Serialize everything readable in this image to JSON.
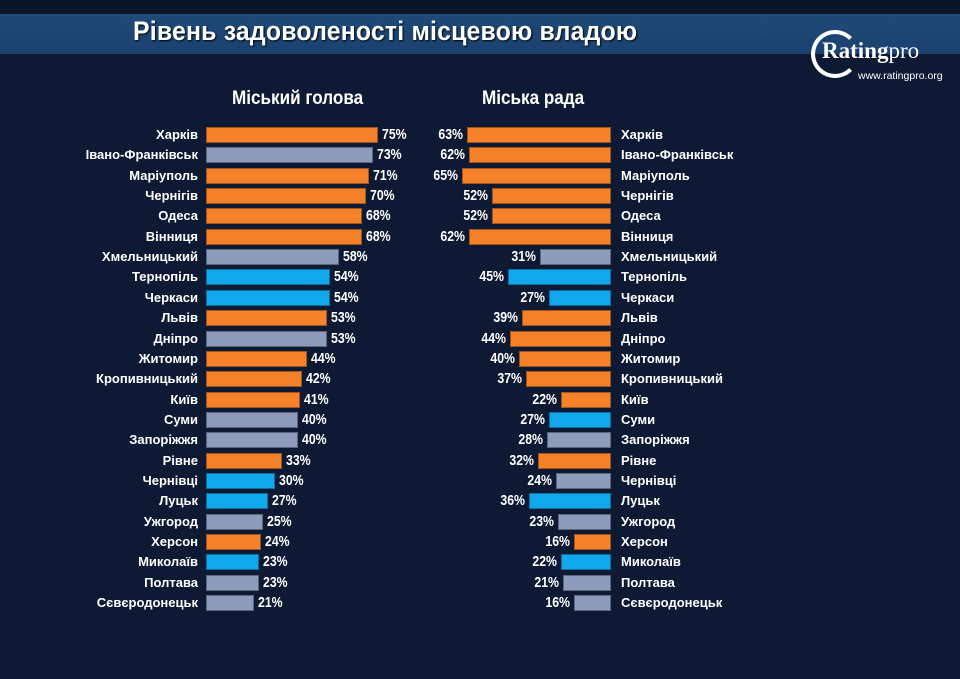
{
  "header": {
    "title": "Рівень задоволеності місцевою владою",
    "logo": {
      "name": "Rating",
      "suffix": "pro",
      "url": "www.ratingpro.org"
    }
  },
  "colors": {
    "orange": "#f5812a",
    "gray": "#8e9cbc",
    "blue": "#11a8ec",
    "background": "#0e1a33",
    "title_band": "#1d4574"
  },
  "chart_data": [
    {
      "type": "bar",
      "orientation": "horizontal",
      "title": "Міський голова",
      "unit": "%",
      "xlim": [
        0,
        100
      ],
      "categories": [
        "Харків",
        "Івано-Франківськ",
        "Маріуполь",
        "Чернігів",
        "Одеса",
        "Вінниця",
        "Хмельницький",
        "Тернопіль",
        "Черкаси",
        "Львів",
        "Дніпро",
        "Житомир",
        "Кропивницький",
        "Київ",
        "Суми",
        "Запоріжжя",
        "Рівне",
        "Чернівці",
        "Луцьк",
        "Ужгород",
        "Херсон",
        "Миколаїв",
        "Полтава",
        "Сєвєродонецьк"
      ],
      "values": [
        75,
        73,
        71,
        70,
        68,
        68,
        58,
        54,
        54,
        53,
        53,
        44,
        42,
        41,
        40,
        40,
        33,
        30,
        27,
        25,
        24,
        23,
        23,
        21
      ],
      "bar_colors": [
        "orange",
        "gray",
        "orange",
        "orange",
        "orange",
        "orange",
        "gray",
        "blue",
        "blue",
        "orange",
        "gray",
        "orange",
        "orange",
        "orange",
        "gray",
        "gray",
        "orange",
        "blue",
        "blue",
        "gray",
        "orange",
        "blue",
        "gray",
        "gray"
      ],
      "labels": [
        "75%",
        "73%",
        "71%",
        "70%",
        "68%",
        "68%",
        "58%",
        "54%",
        "54%",
        "53%",
        "53%",
        "44%",
        "42%",
        "41%",
        "40%",
        "40%",
        "33%",
        "30%",
        "27%",
        "25%",
        "24%",
        "23%",
        "23%",
        "21%"
      ]
    },
    {
      "type": "bar",
      "orientation": "horizontal",
      "title": "Міська рада",
      "unit": "%",
      "xlim": [
        0,
        100
      ],
      "categories": [
        "Харків",
        "Івано-Франківськ",
        "Маріуполь",
        "Чернігів",
        "Одеса",
        "Вінниця",
        "Хмельницький",
        "Тернопіль",
        "Черкаси",
        "Львів",
        "Дніпро",
        "Житомир",
        "Кропивницький",
        "Київ",
        "Суми",
        "Запоріжжя",
        "Рівне",
        "Чернівці",
        "Луцьк",
        "Ужгород",
        "Херсон",
        "Миколаїв",
        "Полтава",
        "Сєвєродонецьк"
      ],
      "values": [
        63,
        62,
        65,
        52,
        52,
        62,
        31,
        45,
        27,
        39,
        44,
        40,
        37,
        22,
        27,
        28,
        32,
        24,
        36,
        23,
        16,
        22,
        21,
        16
      ],
      "bar_colors": [
        "orange",
        "orange",
        "orange",
        "orange",
        "orange",
        "orange",
        "gray",
        "blue",
        "blue",
        "orange",
        "orange",
        "orange",
        "orange",
        "orange",
        "blue",
        "gray",
        "orange",
        "gray",
        "blue",
        "gray",
        "orange",
        "blue",
        "gray",
        "gray"
      ],
      "labels": [
        "63%",
        "62%",
        "65%",
        "52%",
        "52%",
        "62%",
        "31%",
        "45%",
        "27%",
        "39%",
        "44%",
        "40%",
        "37%",
        "22%",
        "27%",
        "28%",
        "32%",
        "24%",
        "36%",
        "23%",
        "16%",
        "22%",
        "21%",
        "16%"
      ]
    }
  ]
}
